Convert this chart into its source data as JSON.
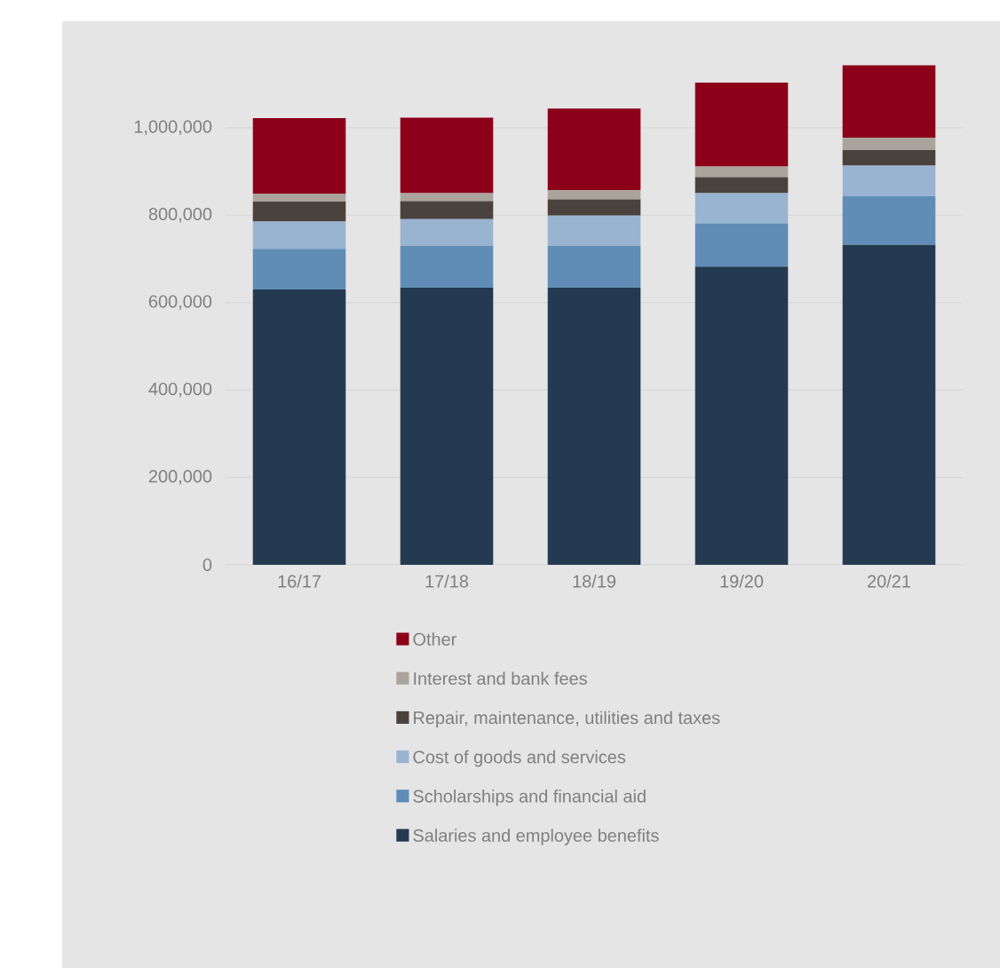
{
  "chart_data": {
    "type": "bar",
    "stacked": true,
    "categories": [
      "16/17",
      "17/18",
      "18/19",
      "19/20",
      "20/21"
    ],
    "series": [
      {
        "name": "Salaries and employee benefits",
        "color": "#243a50",
        "values": [
          630000,
          634000,
          634000,
          682000,
          732000
        ]
      },
      {
        "name": "Scholarships and financial aid",
        "color": "#5f8db5",
        "values": [
          93000,
          96000,
          96000,
          99000,
          111000
        ]
      },
      {
        "name": "Cost of goods and services",
        "color": "#99b4d1",
        "values": [
          62000,
          61000,
          69000,
          69000,
          70000
        ]
      },
      {
        "name": "Repair, maintenance, utilities and taxes",
        "color": "#4a423d",
        "values": [
          46000,
          41000,
          37000,
          37000,
          36000
        ]
      },
      {
        "name": "Interest and bank fees",
        "color": "#aba49d",
        "values": [
          18000,
          18000,
          21000,
          24000,
          28000
        ]
      },
      {
        "name": "Other",
        "color": "#8c001a",
        "values": [
          173000,
          173000,
          187000,
          192000,
          166000
        ]
      }
    ],
    "ylim": [
      0,
      1150000
    ],
    "yticks": [
      {
        "value": 0,
        "label": "0"
      },
      {
        "value": 200000,
        "label": "200,000"
      },
      {
        "value": 400000,
        "label": "400,000"
      },
      {
        "value": 600000,
        "label": "600,000"
      },
      {
        "value": 800000,
        "label": "800,000"
      },
      {
        "value": 1000000,
        "label": "1,000,000"
      }
    ],
    "grid": "y",
    "legend": "bottom"
  }
}
